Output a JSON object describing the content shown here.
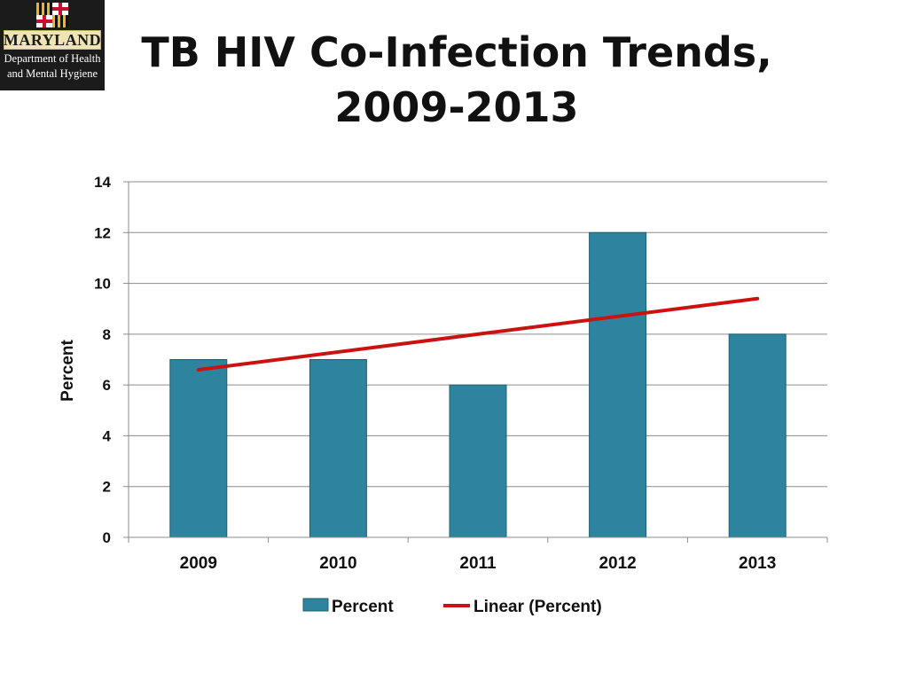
{
  "slide": {
    "title_line1": "TB HIV Co-Infection Trends,",
    "title_line2": "2009-2013"
  },
  "logo": {
    "name": "MARYLAND",
    "dept_line1": "Department of Health",
    "dept_line2": "and Mental Hygiene"
  },
  "colors": {
    "bar": "#2e849e",
    "bar_stroke": "#1f5f73",
    "trend": "#cc1111",
    "grid": "#8c8c8c",
    "logo_bg": "#1b1b1b"
  },
  "chart_data": {
    "type": "bar",
    "title": "",
    "xlabel": "",
    "ylabel": "Percent",
    "categories": [
      "2009",
      "2010",
      "2011",
      "2012",
      "2013"
    ],
    "series": [
      {
        "name": "Percent",
        "values": [
          7,
          7,
          6,
          12,
          8
        ]
      }
    ],
    "trendline": {
      "name": "Linear (Percent)",
      "type": "linear",
      "start": 6.6,
      "end": 9.4
    },
    "ylim": [
      0,
      14
    ],
    "yticks": [
      0,
      2,
      4,
      6,
      8,
      10,
      12,
      14
    ],
    "grid": true,
    "legend": "bottom"
  }
}
